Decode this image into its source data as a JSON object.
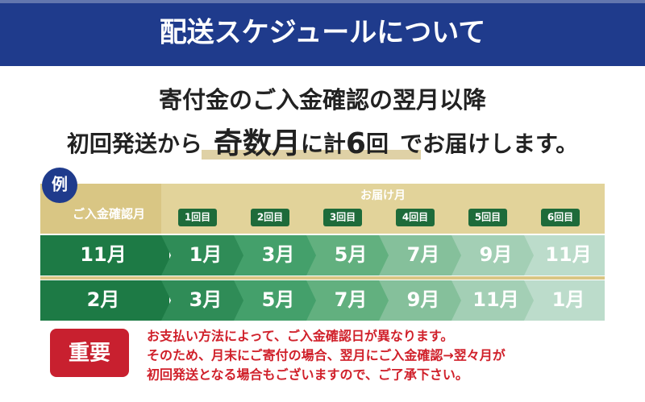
{
  "header": {
    "title": "配送スケジュールについて"
  },
  "intro": {
    "line1": "寄付金のご入金確認の翌月以降",
    "line2": [
      "初回発送から",
      "奇数月",
      "に計",
      "6",
      "回",
      "でお届けします。"
    ]
  },
  "table": {
    "badge": "例",
    "row_header": "ご入金確認月",
    "column_group": "お届け月",
    "columns": [
      "1回目",
      "2回目",
      "3回目",
      "4回目",
      "5回目",
      "6回目"
    ],
    "rows": [
      [
        "11月",
        "1月",
        "3月",
        "5月",
        "7月",
        "9月",
        "11月"
      ],
      [
        "2月",
        "3月",
        "5月",
        "7月",
        "9月",
        "11月",
        "1月"
      ]
    ]
  },
  "notice": {
    "badge": "重要",
    "lines": [
      "お支払い方法によって、ご入金確認日が異なります。",
      "そのため、月末にご寄付の場合、翌月にご入金確認→翌々月が",
      "初回発送となる場合もございますので、ご了承下さい。"
    ]
  }
}
